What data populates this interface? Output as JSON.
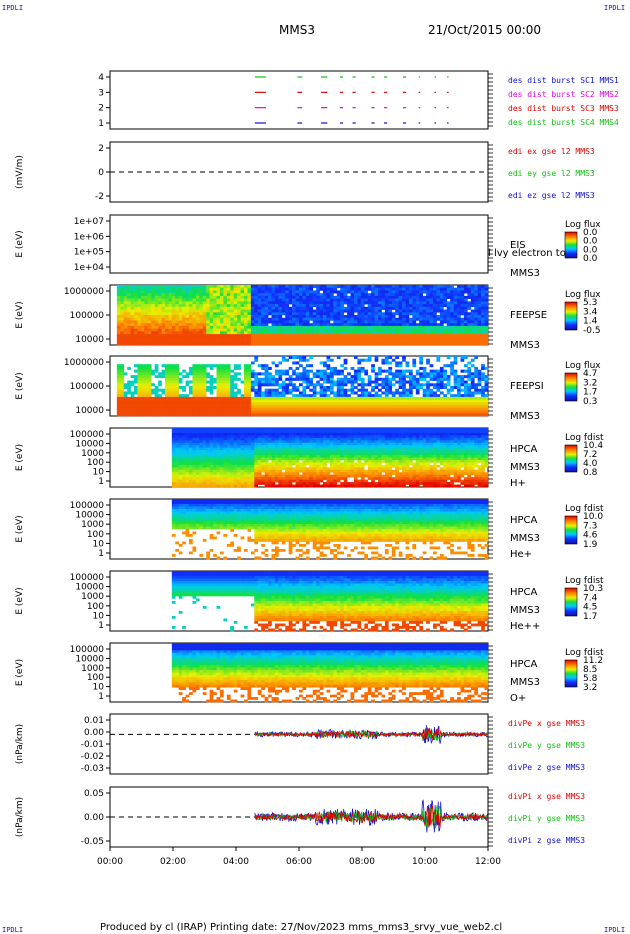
{
  "corners": {
    "tl": "IPDLI",
    "tr": "IPDLI",
    "bl": "IPDLI",
    "br": "IPDLI"
  },
  "header": {
    "title": "MMS3",
    "date": "21/Oct/2015 00:00"
  },
  "footer": "Produced by cl (IRAP)   Printing date: 27/Nov/2023   mms_mms3_srvy_vue_web2.cl",
  "colors": {
    "red": "#e00000",
    "green": "#10c010",
    "blue": "#1010d0",
    "magenta": "#e000e0"
  },
  "chart_data": [
    {
      "id": "burst",
      "type": "line",
      "x_range": [
        "00:00",
        "12:00"
      ],
      "y_ticks": [
        "4",
        "3",
        "2",
        "1"
      ],
      "ylim": [
        0.5,
        4.5
      ],
      "series": [
        {
          "name": "des dist burst SC1 MMS1",
          "level": 1,
          "color": "#1010d0"
        },
        {
          "name": "des dist burst SC2 MMS2",
          "level": 2,
          "color": "#e000e0"
        },
        {
          "name": "des dist burst SC3 MMS3",
          "level": 3,
          "color": "#e00000"
        },
        {
          "name": "des dist burst SC4 MMS4",
          "level": 4,
          "color": "#10c010"
        }
      ],
      "burst_intervals_hours": [
        [
          4.6,
          4.95
        ],
        [
          5.95,
          6.1
        ],
        [
          6.7,
          6.9
        ],
        [
          7.3,
          7.4
        ],
        [
          7.7,
          7.8
        ],
        [
          8.3,
          8.4
        ],
        [
          8.7,
          8.8
        ],
        [
          9.3,
          9.4
        ],
        [
          9.8,
          9.85
        ],
        [
          10.3,
          10.35
        ],
        [
          10.7,
          10.75
        ]
      ]
    },
    {
      "id": "edi",
      "type": "line",
      "ylabel": "(mV/m)",
      "y_ticks": [
        "2",
        "0",
        "-2"
      ],
      "ylim": [
        -3,
        3
      ],
      "series": [
        {
          "name": "edi ex gse l2 MMS3",
          "color": "#e00000"
        },
        {
          "name": "edi ey gse l2 MMS3",
          "color": "#10c010"
        },
        {
          "name": "edi ez gse l2 MMS3",
          "color": "#1010d0"
        }
      ]
    },
    {
      "id": "eis",
      "type": "heatmap",
      "ylabel": "E (eV)",
      "y_ticks": [
        "1e+07",
        "1e+06",
        "1e+05",
        "1e+04"
      ],
      "log_scale": true,
      "side_labels": [
        "EIS",
        "MMS3"
      ],
      "overlay_text": "l  lvy electron to",
      "colorbar": {
        "title": "Log flux",
        "ticks": [
          "0.0",
          "0.0",
          "0.0",
          "0.0"
        ]
      }
    },
    {
      "id": "feepse",
      "type": "heatmap",
      "ylabel": "E (eV)",
      "y_ticks": [
        "1000000",
        "100000",
        "10000"
      ],
      "log_scale": true,
      "side_labels": [
        "FEEPSE",
        "MMS3"
      ],
      "colorbar": {
        "title": "Log flux",
        "ticks": [
          "5.3",
          "3.4",
          "1.4",
          "-0.5"
        ]
      }
    },
    {
      "id": "feepsi",
      "type": "heatmap",
      "ylabel": "E (eV)",
      "y_ticks": [
        "1000000",
        "100000",
        "10000"
      ],
      "log_scale": true,
      "side_labels": [
        "FEEPSI",
        "MMS3"
      ],
      "colorbar": {
        "title": "Log flux",
        "ticks": [
          "4.7",
          "3.2",
          "1.7",
          "0.3"
        ]
      }
    },
    {
      "id": "hpca_h",
      "type": "heatmap",
      "ylabel": "E (eV)",
      "y_ticks": [
        "100000",
        "10000",
        "1000",
        "100",
        "10",
        "1"
      ],
      "log_scale": true,
      "side_labels": [
        "HPCA",
        "MMS3",
        "H+"
      ],
      "colorbar": {
        "title": "Log fdist",
        "ticks": [
          "10.4",
          "7.2",
          "4.0",
          "0.8"
        ]
      }
    },
    {
      "id": "hpca_he",
      "type": "heatmap",
      "ylabel": "E (eV)",
      "y_ticks": [
        "100000",
        "10000",
        "1000",
        "100",
        "10",
        "1"
      ],
      "log_scale": true,
      "side_labels": [
        "HPCA",
        "MMS3",
        "He+"
      ],
      "colorbar": {
        "title": "Log fdist",
        "ticks": [
          "10.0",
          "7.3",
          "4.6",
          "1.9"
        ]
      }
    },
    {
      "id": "hpca_hepp",
      "type": "heatmap",
      "ylabel": "E (eV)",
      "y_ticks": [
        "100000",
        "10000",
        "1000",
        "100",
        "10",
        "1"
      ],
      "log_scale": true,
      "side_labels": [
        "HPCA",
        "MMS3",
        "He++"
      ],
      "colorbar": {
        "title": "Log fdist",
        "ticks": [
          "10.3",
          "7.4",
          "4.5",
          "1.7"
        ]
      }
    },
    {
      "id": "hpca_o",
      "type": "heatmap",
      "ylabel": "E (eV)",
      "y_ticks": [
        "100000",
        "10000",
        "1000",
        "100",
        "10",
        "1"
      ],
      "log_scale": true,
      "side_labels": [
        "HPCA",
        "MMS3",
        "O+"
      ],
      "colorbar": {
        "title": "Log fdist",
        "ticks": [
          "11.2",
          "8.5",
          "5.8",
          "3.2"
        ]
      }
    },
    {
      "id": "divpe",
      "type": "line",
      "ylabel": "(nPa/km)",
      "y_ticks": [
        "0.01",
        "0.00",
        "-0.01",
        "-0.02",
        "-0.03"
      ],
      "ylim": [
        -0.035,
        0.018
      ],
      "series": [
        {
          "name": "divPe x gse MMS3",
          "color": "#e00000"
        },
        {
          "name": "divPe y gse MMS3",
          "color": "#10c010"
        },
        {
          "name": "divPe z gse MMS3",
          "color": "#1010d0"
        }
      ]
    },
    {
      "id": "divpi",
      "type": "line",
      "ylabel": "(nPa/km)",
      "y_ticks": [
        "0.05",
        "0.00",
        "-0.05"
      ],
      "ylim": [
        -0.075,
        0.075
      ],
      "series": [
        {
          "name": "divPi x gse MMS3",
          "color": "#e00000"
        },
        {
          "name": "divPi y gse MMS3",
          "color": "#10c010"
        },
        {
          "name": "divPi z gse MMS3",
          "color": "#1010d0"
        }
      ]
    }
  ],
  "x_axis": {
    "ticks": [
      "00:00",
      "02:00",
      "04:00",
      "06:00",
      "08:00",
      "10:00",
      "12:00"
    ],
    "range_hours": [
      0,
      12
    ]
  }
}
